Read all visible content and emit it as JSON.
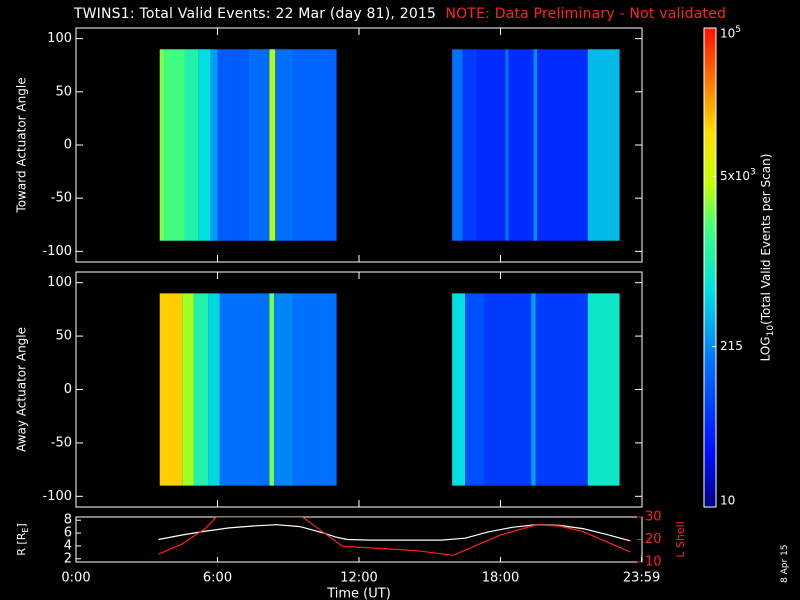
{
  "title": {
    "main": "TWINS1: Total Valid Events: 22 Mar (day  81), 2015",
    "note": "NOTE: Data Preliminary - Not validated"
  },
  "footer_stamp": "8 Apr 15",
  "colors": {
    "background": "#000000",
    "axis": "#ffffff",
    "note": "#ff2020",
    "lshell": "#ff2020",
    "radius": "#ffffff"
  },
  "chart_data": [
    {
      "type": "heatmap",
      "ylabel": "Toward Actuator Angle",
      "ylim": [
        -110,
        110
      ],
      "yticks": [
        100,
        50,
        0,
        -50,
        -100
      ],
      "ytick_labels": [
        "100",
        "50",
        "0",
        "-50",
        "-100"
      ],
      "xlim": [
        0,
        24
      ],
      "angle_range": [
        -90,
        90
      ],
      "data_windows": [
        [
          3.55,
          11.05
        ],
        [
          15.95,
          23.05
        ]
      ],
      "columns": [
        {
          "t0": 3.55,
          "t1": 3.75,
          "level": 0.62
        },
        {
          "t0": 3.75,
          "t1": 4.6,
          "level": 0.58
        },
        {
          "t0": 4.6,
          "t1": 5.2,
          "level": 0.52
        },
        {
          "t0": 5.2,
          "t1": 5.7,
          "level": 0.45
        },
        {
          "t0": 5.7,
          "t1": 6.0,
          "level": 0.36
        },
        {
          "t0": 6.0,
          "t1": 7.3,
          "level": 0.26
        },
        {
          "t0": 7.3,
          "t1": 8.2,
          "level": 0.29
        },
        {
          "t0": 8.2,
          "t1": 8.45,
          "level": 0.66
        },
        {
          "t0": 8.45,
          "t1": 9.2,
          "level": 0.3
        },
        {
          "t0": 9.2,
          "t1": 11.05,
          "level": 0.28
        },
        {
          "t0": 15.95,
          "t1": 16.4,
          "level": 0.3
        },
        {
          "t0": 16.4,
          "t1": 17.0,
          "level": 0.2
        },
        {
          "t0": 17.0,
          "t1": 18.2,
          "level": 0.17
        },
        {
          "t0": 18.2,
          "t1": 18.35,
          "level": 0.3
        },
        {
          "t0": 18.35,
          "t1": 19.4,
          "level": 0.17
        },
        {
          "t0": 19.4,
          "t1": 19.55,
          "level": 0.34
        },
        {
          "t0": 19.55,
          "t1": 21.7,
          "level": 0.17
        },
        {
          "t0": 21.7,
          "t1": 23.05,
          "level": 0.4
        }
      ]
    },
    {
      "type": "heatmap",
      "ylabel": "Away Actuator Angle",
      "ylim": [
        -110,
        110
      ],
      "yticks": [
        100,
        50,
        0,
        -50,
        -100
      ],
      "ytick_labels": [
        "100",
        "50",
        "0",
        "-50",
        "-100"
      ],
      "xlim": [
        0,
        24
      ],
      "angle_range": [
        -90,
        90
      ],
      "data_windows": [
        [
          3.55,
          11.05
        ],
        [
          15.95,
          23.05
        ]
      ],
      "columns": [
        {
          "t0": 3.55,
          "t1": 4.5,
          "level": 0.8
        },
        {
          "t0": 4.5,
          "t1": 5.0,
          "level": 0.65
        },
        {
          "t0": 5.0,
          "t1": 5.6,
          "level": 0.52
        },
        {
          "t0": 5.6,
          "t1": 6.1,
          "level": 0.44
        },
        {
          "t0": 6.1,
          "t1": 8.2,
          "level": 0.3
        },
        {
          "t0": 8.2,
          "t1": 8.4,
          "level": 0.62
        },
        {
          "t0": 8.4,
          "t1": 9.2,
          "level": 0.33
        },
        {
          "t0": 9.2,
          "t1": 11.05,
          "level": 0.3
        },
        {
          "t0": 15.95,
          "t1": 16.5,
          "level": 0.45
        },
        {
          "t0": 16.5,
          "t1": 17.3,
          "level": 0.24
        },
        {
          "t0": 17.3,
          "t1": 19.3,
          "level": 0.2
        },
        {
          "t0": 19.3,
          "t1": 19.5,
          "level": 0.36
        },
        {
          "t0": 19.5,
          "t1": 21.7,
          "level": 0.2
        },
        {
          "t0": 21.7,
          "t1": 23.05,
          "level": 0.48
        }
      ]
    },
    {
      "type": "line",
      "xlabel": "Time (UT)",
      "xlim": [
        0,
        24
      ],
      "xticks": [
        0,
        6,
        12,
        18,
        23.983
      ],
      "xtick_labels": [
        "0:00",
        "6:00",
        "12:00",
        "18:00",
        "23:59"
      ],
      "ylabel": "R [R",
      "ylabel_sub": "E",
      "ylim": [
        1.5,
        8.5
      ],
      "yticks": [
        2,
        4,
        6,
        8
      ],
      "ytick_labels": [
        "2",
        "4",
        "6",
        "8"
      ],
      "right_axis": {
        "label": "L Shell",
        "ylim": [
          10,
          30
        ],
        "yticks": [
          10,
          20,
          30
        ],
        "ytick_labels": [
          "10",
          "20",
          "30"
        ]
      },
      "series": [
        {
          "axis": "left",
          "color": "#ffffff",
          "x": [
            3.5,
            4.5,
            5.5,
            6.5,
            7.5,
            8.5,
            9.5,
            10.5,
            11.0,
            11.5,
            12.5,
            14.0,
            15.5,
            16.5,
            17.5,
            18.5,
            19.5,
            20.5,
            21.5,
            22.5,
            23.5
          ],
          "y": [
            5.0,
            5.7,
            6.3,
            6.8,
            7.1,
            7.3,
            7.0,
            6.0,
            5.4,
            5.0,
            4.9,
            4.9,
            4.9,
            5.2,
            6.2,
            6.9,
            7.3,
            7.2,
            6.7,
            5.8,
            4.8
          ]
        },
        {
          "axis": "right",
          "color": "#ff2020",
          "x": [
            3.5,
            4.5,
            5.5,
            5.95,
            9.6,
            10.0,
            11.3,
            13.0,
            14.5,
            16.0,
            18.0,
            19.5,
            20.5,
            21.5,
            22.5,
            23.5
          ],
          "y": [
            13.5,
            18.0,
            25.0,
            30.0,
            30.0,
            27.0,
            17.0,
            16.0,
            15.0,
            13.0,
            22.0,
            26.5,
            26.0,
            23.5,
            19.0,
            14.5
          ]
        }
      ]
    }
  ],
  "colorbar": {
    "label_prefix": "LOG",
    "label_sub": "10",
    "label_suffix": "(Total Valid Events per Scan)",
    "ticks": [
      {
        "base": "10",
        "exp": "5",
        "frac": 1.0
      },
      {
        "base": "5x10",
        "exp": "3",
        "frac": 0.69
      },
      {
        "base": "215",
        "exp": "",
        "frac": 0.335
      },
      {
        "base": "10",
        "exp": "",
        "frac": 0.0
      }
    ]
  }
}
